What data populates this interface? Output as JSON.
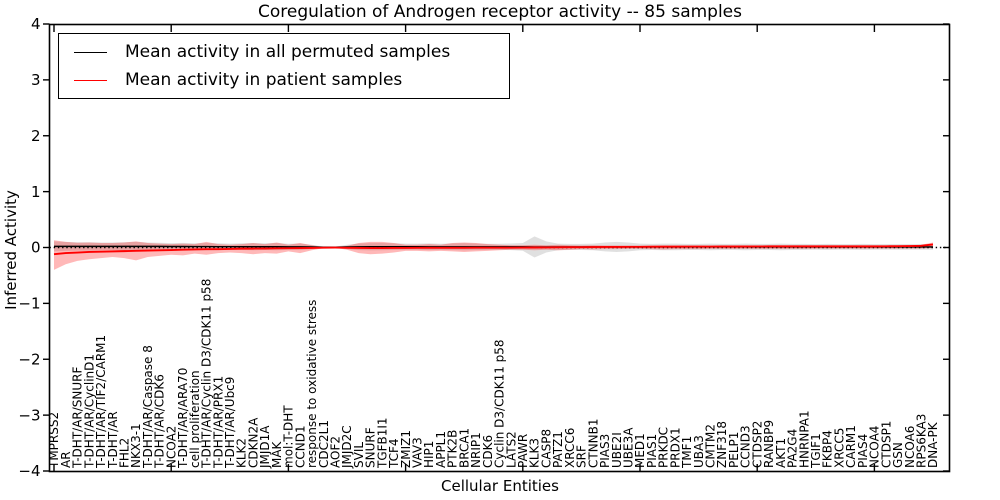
{
  "title": "Coregulation of Androgen receptor activity -- 85 samples",
  "legend": {
    "position": "upper left",
    "items": [
      {
        "label": "Mean activity in all permuted samples",
        "color": "#000000"
      },
      {
        "label": "Mean activity in patient samples",
        "color": "#ff0000"
      }
    ]
  },
  "axes": {
    "xlabel": "Cellular Entities",
    "ylabel": "Inferred Activity",
    "yticks": [
      4,
      3,
      2,
      1,
      0,
      -1,
      -2,
      -3,
      -4
    ],
    "ytick_labels": [
      "4",
      "3",
      "2",
      "1",
      "0",
      "−1",
      "−2",
      "−3",
      "−4"
    ],
    "ylim": [
      -4,
      4
    ],
    "grid": false,
    "x_major_tick_every": 10
  },
  "chart_data": {
    "type": "line",
    "title": "Coregulation of Androgen receptor activity -- 85 samples",
    "xlabel": "Cellular Entities",
    "ylabel": "Inferred Activity",
    "ylim": [
      -4,
      4
    ],
    "legend_position": "upper left",
    "zero_line": {
      "value": 0,
      "style": "dotted",
      "color": "#000000"
    },
    "categories": [
      "TMPRSS2",
      "AR",
      "T-DHT/AR/SNURF",
      "T-DHT/AR/CyclinD1",
      "T-DHT/AR/TIF2/CARM1",
      "T-DHT/AR",
      "FHL2",
      "NKX3-1",
      "T-DHT/AR/Caspase 8",
      "T-DHT/AR/CDK6",
      "NCOA2",
      "T-DHT/AR/ARA70",
      "cell proliferation",
      "T-DHT/AR/Cyclin D3/CDK11 p58",
      "T-DHT/AR/PRX1",
      "T-DHT/AR/Ubc9",
      "KLK2",
      "CDKN2A",
      "JMJD1A",
      "MAK",
      "mol:T-DHT",
      "CCND1",
      "response to oxidative stress",
      "CDC2L1",
      "AOF2",
      "JMJD2C",
      "SVIL",
      "SNURF",
      "TGFB1I1",
      "TCF4",
      "ZMIZ1",
      "VAV3",
      "HIP1",
      "APPL1",
      "PTK2B",
      "BRCA1",
      "NRIP1",
      "CDK6",
      "Cyclin D3/CDK11 p58",
      "LATS2",
      "PAWR",
      "KLK3",
      "CASP8",
      "PATZ1",
      "XRCC6",
      "SRF",
      "CTNNB1",
      "PIAS3",
      "UBE2I",
      "UBE3A",
      "MED1",
      "PIAS1",
      "PRKDC",
      "PRDX1",
      "TMF1",
      "UBA3",
      "CMTM2",
      "ZNF318",
      "PELP1",
      "CCND3",
      "CTDSP2",
      "RANBP9",
      "AKT1",
      "PA2G4",
      "HNRNPA1",
      "TGIF1",
      "FKBP4",
      "XRCC5",
      "CARM1",
      "PIAS4",
      "NCOA4",
      "CTDSP1",
      "GSN",
      "NCOA6",
      "RPS6KA3",
      "DNA-PK"
    ],
    "series": [
      {
        "name": "Mean activity in all permuted samples",
        "color": "#000000",
        "values": [
          0.02,
          0.02,
          0.02,
          0.02,
          0.02,
          0.02,
          0.02,
          0.02,
          0.02,
          0.02,
          0.018,
          0.018,
          0.016,
          0.016,
          0.015,
          0.015,
          0.015,
          0.015,
          0.015,
          0.015,
          0.012,
          0.012,
          0.01,
          0.005,
          0.005,
          0.01,
          0.012,
          0.014,
          0.015,
          0.015,
          0.014,
          0.014,
          0.013,
          0.013,
          0.013,
          0.013,
          0.012,
          0.012,
          0.012,
          0.012,
          0.011,
          0.01,
          0.01,
          0.01,
          0.01,
          0.01,
          0.01,
          0.01,
          0.01,
          0.01,
          0.01,
          0.01,
          0.01,
          0.01,
          0.01,
          0.01,
          0.01,
          0.01,
          0.01,
          0.01,
          0.01,
          0.01,
          0.01,
          0.01,
          0.01,
          0.01,
          0.01,
          0.01,
          0.01,
          0.01,
          0.01,
          0.01,
          0.01,
          0.01,
          0.01,
          0.01
        ]
      },
      {
        "name": "Mean activity in patient samples",
        "color": "#ff0000",
        "values": [
          -0.12,
          -0.1,
          -0.09,
          -0.08,
          -0.075,
          -0.07,
          -0.065,
          -0.06,
          -0.055,
          -0.05,
          -0.045,
          -0.04,
          -0.035,
          -0.03,
          -0.03,
          -0.025,
          -0.02,
          -0.02,
          -0.018,
          -0.015,
          -0.012,
          -0.01,
          -0.008,
          -0.003,
          -0.002,
          -0.005,
          -0.008,
          -0.01,
          -0.01,
          -0.008,
          -0.008,
          -0.006,
          -0.006,
          -0.005,
          -0.005,
          -0.005,
          -0.004,
          -0.004,
          -0.003,
          -0.003,
          -0.002,
          0.0,
          0.002,
          0.004,
          0.005,
          0.006,
          0.008,
          0.01,
          0.01,
          0.012,
          0.012,
          0.014,
          0.015,
          0.015,
          0.016,
          0.016,
          0.017,
          0.018,
          0.018,
          0.018,
          0.019,
          0.02,
          0.02,
          0.02,
          0.02,
          0.02,
          0.02,
          0.02,
          0.02,
          0.02,
          0.02,
          0.022,
          0.024,
          0.026,
          0.03,
          0.055
        ]
      }
    ],
    "bands": [
      {
        "name": "permuted-samples-range",
        "fill": "rgba(0,0,0,0.12)",
        "centered_on_series": 0,
        "half_widths": [
          0.09,
          0.08,
          0.075,
          0.075,
          0.07,
          0.07,
          0.075,
          0.08,
          0.07,
          0.065,
          0.06,
          0.065,
          0.06,
          0.065,
          0.06,
          0.055,
          0.06,
          0.065,
          0.06,
          0.065,
          0.055,
          0.06,
          0.04,
          0.01,
          0.01,
          0.04,
          0.06,
          0.065,
          0.065,
          0.06,
          0.055,
          0.055,
          0.06,
          0.055,
          0.06,
          0.065,
          0.06,
          0.055,
          0.055,
          0.06,
          0.07,
          0.19,
          0.1,
          0.06,
          0.055,
          0.055,
          0.06,
          0.08,
          0.09,
          0.08,
          0.06,
          0.055,
          0.06,
          0.06,
          0.055,
          0.055,
          0.06,
          0.055,
          0.055,
          0.06,
          0.055,
          0.055,
          0.06,
          0.055,
          0.055,
          0.05,
          0.055,
          0.05,
          0.05,
          0.055,
          0.05,
          0.05,
          0.05,
          0.05,
          0.05,
          0.05
        ]
      },
      {
        "name": "patient-samples-range",
        "fill": "rgba(255,0,0,0.28)",
        "upper": [
          0.13,
          0.1,
          0.085,
          0.09,
          0.08,
          0.08,
          0.09,
          0.11,
          0.08,
          0.07,
          0.06,
          0.07,
          0.06,
          0.1,
          0.06,
          0.05,
          0.06,
          0.08,
          0.06,
          0.09,
          0.05,
          0.08,
          0.04,
          0.01,
          0.005,
          0.03,
          0.08,
          0.1,
          0.1,
          0.08,
          0.05,
          0.05,
          0.06,
          0.05,
          0.08,
          0.09,
          0.08,
          0.06,
          0.05,
          0.04,
          0.04,
          0.05,
          0.04,
          0.05,
          0.04,
          0.035,
          0.04,
          0.035,
          0.035,
          0.03,
          0.03,
          0.035,
          0.04,
          0.04,
          0.035,
          0.035,
          0.03,
          0.03,
          0.03,
          0.03,
          0.03,
          0.03,
          0.03,
          0.03,
          0.03,
          0.03,
          0.03,
          0.03,
          0.03,
          0.03,
          0.03,
          0.03,
          0.035,
          0.04,
          0.05,
          0.09
        ],
        "lower": [
          -0.4,
          -0.3,
          -0.24,
          -0.21,
          -0.19,
          -0.17,
          -0.19,
          -0.23,
          -0.17,
          -0.15,
          -0.13,
          -0.14,
          -0.11,
          -0.13,
          -0.1,
          -0.09,
          -0.1,
          -0.12,
          -0.1,
          -0.11,
          -0.07,
          -0.1,
          -0.05,
          -0.012,
          -0.006,
          -0.04,
          -0.1,
          -0.12,
          -0.11,
          -0.09,
          -0.06,
          -0.06,
          -0.07,
          -0.06,
          -0.07,
          -0.08,
          -0.07,
          -0.06,
          -0.05,
          -0.04,
          -0.04,
          -0.05,
          -0.04,
          -0.05,
          -0.04,
          -0.03,
          -0.035,
          -0.03,
          -0.03,
          -0.025,
          -0.025,
          -0.03,
          -0.035,
          -0.03,
          -0.03,
          -0.03,
          -0.025,
          -0.025,
          -0.025,
          -0.025,
          -0.025,
          -0.025,
          -0.025,
          -0.025,
          -0.025,
          -0.02,
          -0.02,
          -0.02,
          -0.02,
          -0.02,
          -0.02,
          -0.02,
          -0.02,
          -0.02,
          -0.02,
          -0.01
        ]
      }
    ]
  }
}
